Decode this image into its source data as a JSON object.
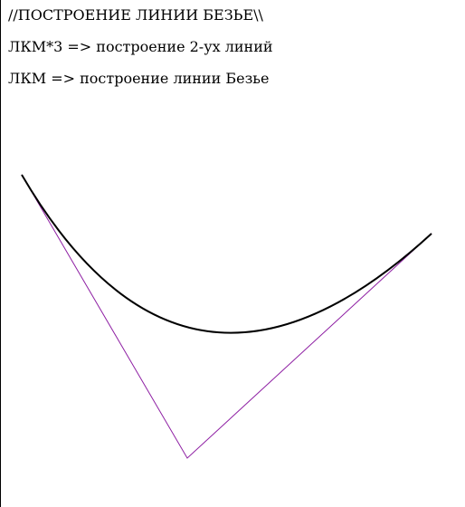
{
  "instructions": {
    "title": "//ПОСТРОЕНИЕ ЛИНИИ БЕЗЬЕ\\\\",
    "hint_triple_click": "ЛКМ*3 => построение 2-ух линий",
    "hint_click": "ЛКМ => построение линии Безье"
  },
  "colors": {
    "background": "#ffffff",
    "text": "#000000",
    "control_lines": "#8e1fa3",
    "bezier_curve": "#000000"
  }
}
